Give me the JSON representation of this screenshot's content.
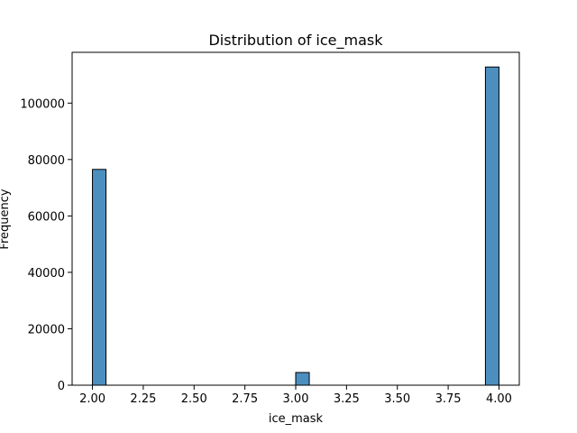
{
  "chart_data": {
    "type": "bar",
    "title": "Distribution of ice_mask",
    "xlabel": "ice_mask",
    "ylabel": "Frequency",
    "xlim": [
      1.9,
      4.1
    ],
    "ylim": [
      0,
      118000
    ],
    "x_ticks": [
      2.0,
      2.25,
      2.5,
      2.75,
      3.0,
      3.25,
      3.5,
      3.75,
      4.0
    ],
    "x_tick_labels": [
      "2.00",
      "2.25",
      "2.50",
      "2.75",
      "3.00",
      "3.25",
      "3.50",
      "3.75",
      "4.00"
    ],
    "y_ticks": [
      0,
      20000,
      40000,
      60000,
      80000,
      100000
    ],
    "y_tick_labels": [
      "0",
      "20000",
      "40000",
      "60000",
      "80000",
      "100000"
    ],
    "bin_width": 0.0667,
    "bars": [
      {
        "x_start": 2.0,
        "x_end": 2.0667,
        "count": 76500
      },
      {
        "x_start": 3.0,
        "x_end": 3.0667,
        "count": 4500
      },
      {
        "x_start": 3.9333,
        "x_end": 4.0,
        "count": 112800
      }
    ],
    "grid": false,
    "bar_color": "#4c8fbf",
    "edge_color": "#000000"
  }
}
